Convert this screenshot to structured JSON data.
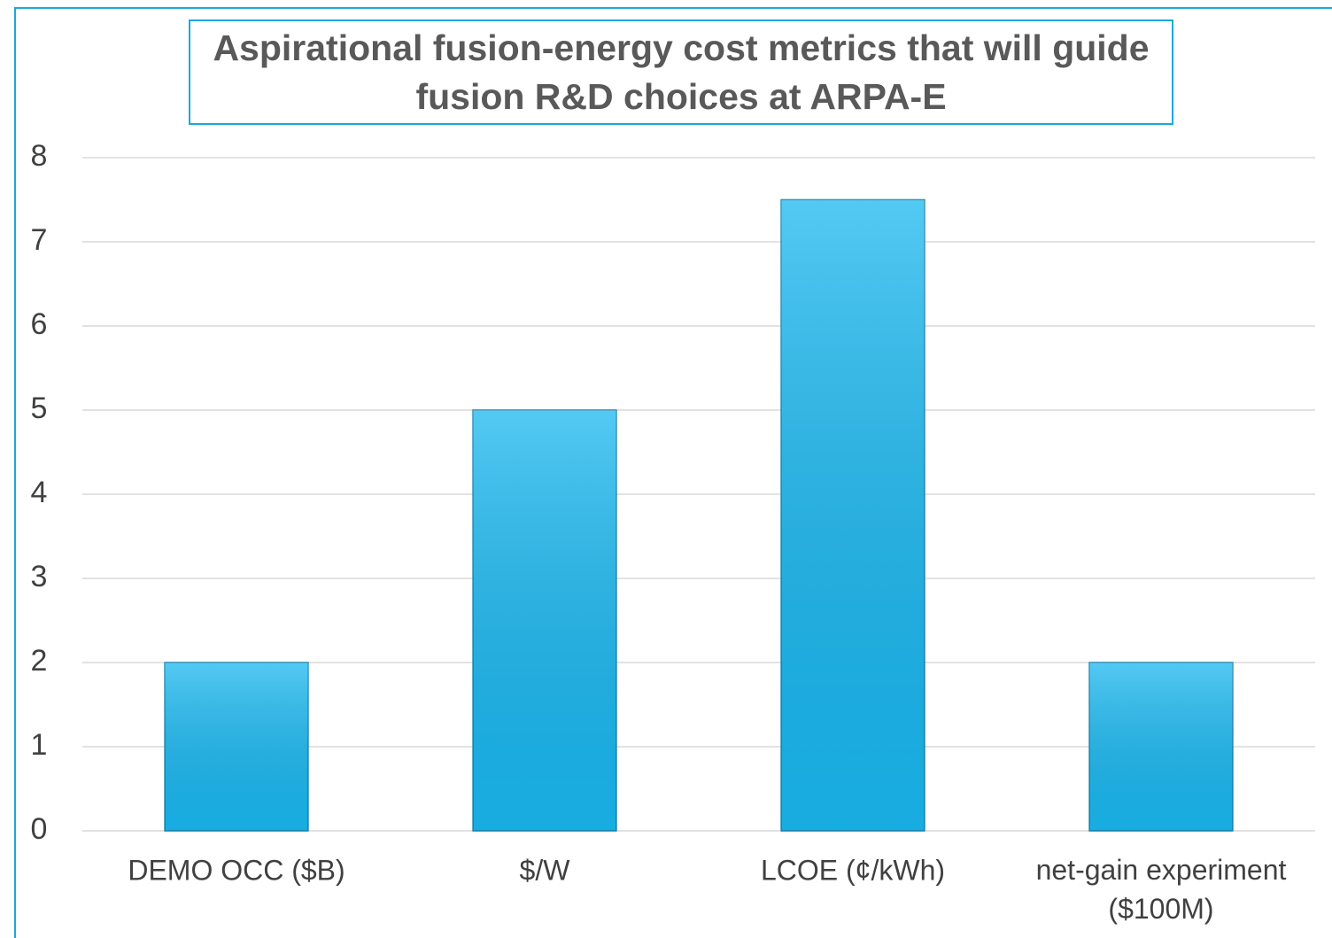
{
  "chart_data": {
    "type": "bar",
    "title": "Aspirational fusion-energy cost metrics that will guide fusion R&D choices at ARPA-E",
    "categories": [
      "DEMO OCC ($B)",
      "$/W",
      "LCOE (¢/kWh)",
      "net-gain experiment ($100M)"
    ],
    "values": [
      2,
      5,
      7.5,
      2
    ],
    "color": "#1ab8f0",
    "ylim": [
      0,
      8
    ],
    "yticks": [
      0,
      1,
      2,
      3,
      4,
      5,
      6,
      7,
      8
    ],
    "grid": true
  }
}
